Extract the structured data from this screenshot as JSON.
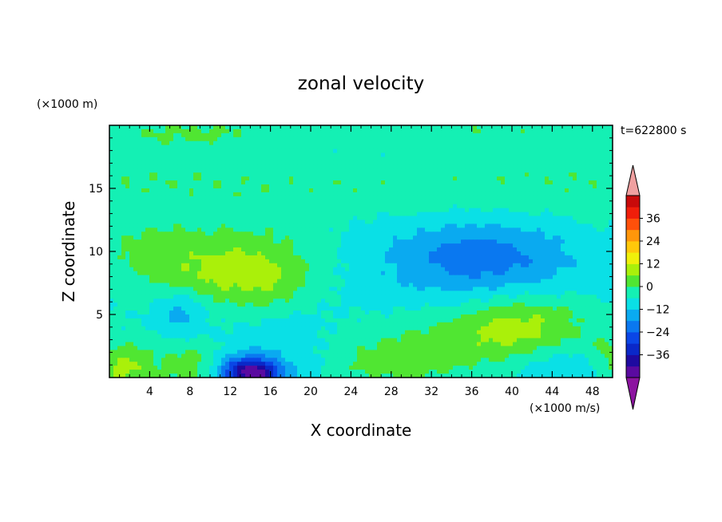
{
  "chart_data": {
    "type": "heatmap",
    "title": "zonal velocity",
    "time_label": "t=622800 s",
    "xlabel": "X coordinate",
    "ylabel": "Z coordinate",
    "x_unit": "(×1000 m/s)",
    "y_unit": "(×1000 m)",
    "xlim": [
      0,
      50
    ],
    "ylim": [
      0,
      20
    ],
    "xticks": [
      4,
      8,
      12,
      16,
      20,
      24,
      28,
      32,
      36,
      40,
      44,
      48
    ],
    "yticks": [
      5,
      10,
      15
    ],
    "colorbar": {
      "levels": [
        -42,
        -36,
        -30,
        -24,
        -18,
        -12,
        -6,
        0,
        6,
        12,
        18,
        24,
        30,
        36,
        42
      ],
      "labels": [
        36,
        24,
        12,
        0,
        -12,
        -24,
        -36
      ],
      "colors": [
        "#5a0aa0",
        "#1e0aa0",
        "#0a28c8",
        "#0a46e6",
        "#0a78f0",
        "#0aaaf0",
        "#0ae0e6",
        "#14f0b4",
        "#50e632",
        "#aaf00a",
        "#f0f00a",
        "#ffc80a",
        "#ff960a",
        "#ff500a",
        "#f01e0a",
        "#c80a0a"
      ],
      "under_color": "#8c14a0",
      "over_color": "#f0a0a0"
    },
    "field_blobs": [
      {
        "x": 25,
        "y": 10,
        "rx": 60,
        "ry": 30,
        "v": -8
      },
      {
        "x": 25,
        "y": 15.5,
        "rx": 60,
        "ry": 3.2,
        "v": 7
      },
      {
        "x": 8,
        "y": 19.5,
        "rx": 9,
        "ry": 1.3,
        "v": 6
      },
      {
        "x": 35,
        "y": 19.6,
        "rx": 16,
        "ry": 1.1,
        "v": 5
      },
      {
        "x": 25,
        "y": 17.5,
        "rx": 12,
        "ry": 1.5,
        "v": -2
      },
      {
        "x": 12,
        "y": 9,
        "rx": 9,
        "ry": 3,
        "v": 11
      },
      {
        "x": 15,
        "y": 7.5,
        "rx": 5,
        "ry": 3,
        "v": 8
      },
      {
        "x": 6,
        "y": 8.5,
        "rx": 5,
        "ry": 3,
        "v": 4
      },
      {
        "x": 3,
        "y": 10.5,
        "rx": 3.5,
        "ry": 1.6,
        "v": 4
      },
      {
        "x": 7,
        "y": 5.2,
        "rx": 2.5,
        "ry": 1.8,
        "v": -9
      },
      {
        "x": 17,
        "y": 2.5,
        "rx": 5,
        "ry": 3,
        "v": -5
      },
      {
        "x": 14.5,
        "y": 0.3,
        "rx": 2.6,
        "ry": 1.1,
        "v": -30
      },
      {
        "x": 13,
        "y": 0.6,
        "rx": 3,
        "ry": 1.2,
        "v": -12
      },
      {
        "x": 1.5,
        "y": 0.8,
        "rx": 3,
        "ry": 2,
        "v": 14
      },
      {
        "x": 8,
        "y": 0.9,
        "rx": 3,
        "ry": 2,
        "v": 10
      },
      {
        "x": 33,
        "y": 2.6,
        "rx": 12,
        "ry": 2.4,
        "v": 9
      },
      {
        "x": 41,
        "y": 4.4,
        "rx": 6.5,
        "ry": 2.4,
        "v": 12
      },
      {
        "x": 28,
        "y": 0.8,
        "rx": 6,
        "ry": 1.5,
        "v": 6
      },
      {
        "x": 45,
        "y": 0.9,
        "rx": 5,
        "ry": 1.6,
        "v": -6
      },
      {
        "x": 49.5,
        "y": 1.5,
        "rx": 1.5,
        "ry": 2,
        "v": 8
      },
      {
        "x": 37,
        "y": 9.5,
        "rx": 9,
        "ry": 3,
        "v": -14
      }
    ]
  }
}
